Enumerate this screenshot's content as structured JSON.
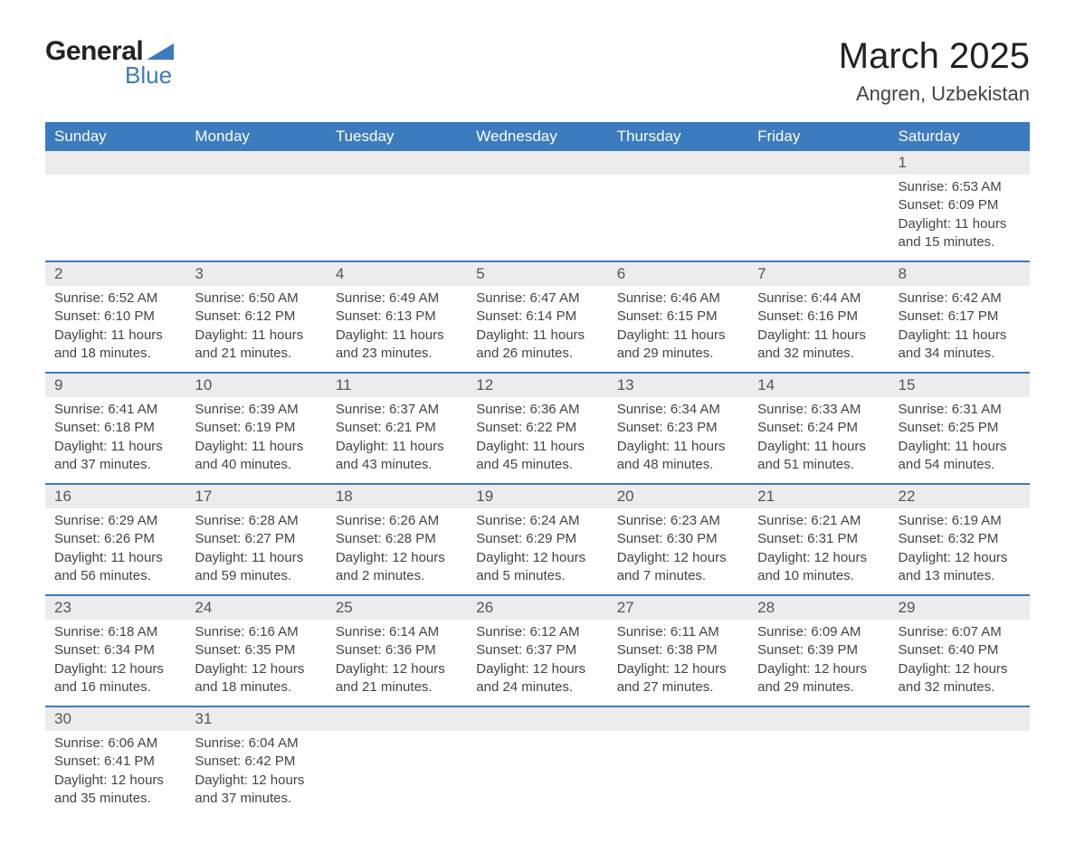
{
  "logo": {
    "general_text": "General",
    "blue_text": "Blue"
  },
  "title": "March 2025",
  "location": "Angren, Uzbekistan",
  "colors": {
    "header_bg": "#3b7bbf",
    "header_text": "#ffffff",
    "band_bg": "#ececec",
    "text": "#444444",
    "border": "#3b7bbf",
    "background": "#ffffff"
  },
  "day_names": [
    "Sunday",
    "Monday",
    "Tuesday",
    "Wednesday",
    "Thursday",
    "Friday",
    "Saturday"
  ],
  "weeks": [
    [
      null,
      null,
      null,
      null,
      null,
      null,
      {
        "day": "1",
        "sunrise": "Sunrise: 6:53 AM",
        "sunset": "Sunset: 6:09 PM",
        "daylight": "Daylight: 11 hours and 15 minutes."
      }
    ],
    [
      {
        "day": "2",
        "sunrise": "Sunrise: 6:52 AM",
        "sunset": "Sunset: 6:10 PM",
        "daylight": "Daylight: 11 hours and 18 minutes."
      },
      {
        "day": "3",
        "sunrise": "Sunrise: 6:50 AM",
        "sunset": "Sunset: 6:12 PM",
        "daylight": "Daylight: 11 hours and 21 minutes."
      },
      {
        "day": "4",
        "sunrise": "Sunrise: 6:49 AM",
        "sunset": "Sunset: 6:13 PM",
        "daylight": "Daylight: 11 hours and 23 minutes."
      },
      {
        "day": "5",
        "sunrise": "Sunrise: 6:47 AM",
        "sunset": "Sunset: 6:14 PM",
        "daylight": "Daylight: 11 hours and 26 minutes."
      },
      {
        "day": "6",
        "sunrise": "Sunrise: 6:46 AM",
        "sunset": "Sunset: 6:15 PM",
        "daylight": "Daylight: 11 hours and 29 minutes."
      },
      {
        "day": "7",
        "sunrise": "Sunrise: 6:44 AM",
        "sunset": "Sunset: 6:16 PM",
        "daylight": "Daylight: 11 hours and 32 minutes."
      },
      {
        "day": "8",
        "sunrise": "Sunrise: 6:42 AM",
        "sunset": "Sunset: 6:17 PM",
        "daylight": "Daylight: 11 hours and 34 minutes."
      }
    ],
    [
      {
        "day": "9",
        "sunrise": "Sunrise: 6:41 AM",
        "sunset": "Sunset: 6:18 PM",
        "daylight": "Daylight: 11 hours and 37 minutes."
      },
      {
        "day": "10",
        "sunrise": "Sunrise: 6:39 AM",
        "sunset": "Sunset: 6:19 PM",
        "daylight": "Daylight: 11 hours and 40 minutes."
      },
      {
        "day": "11",
        "sunrise": "Sunrise: 6:37 AM",
        "sunset": "Sunset: 6:21 PM",
        "daylight": "Daylight: 11 hours and 43 minutes."
      },
      {
        "day": "12",
        "sunrise": "Sunrise: 6:36 AM",
        "sunset": "Sunset: 6:22 PM",
        "daylight": "Daylight: 11 hours and 45 minutes."
      },
      {
        "day": "13",
        "sunrise": "Sunrise: 6:34 AM",
        "sunset": "Sunset: 6:23 PM",
        "daylight": "Daylight: 11 hours and 48 minutes."
      },
      {
        "day": "14",
        "sunrise": "Sunrise: 6:33 AM",
        "sunset": "Sunset: 6:24 PM",
        "daylight": "Daylight: 11 hours and 51 minutes."
      },
      {
        "day": "15",
        "sunrise": "Sunrise: 6:31 AM",
        "sunset": "Sunset: 6:25 PM",
        "daylight": "Daylight: 11 hours and 54 minutes."
      }
    ],
    [
      {
        "day": "16",
        "sunrise": "Sunrise: 6:29 AM",
        "sunset": "Sunset: 6:26 PM",
        "daylight": "Daylight: 11 hours and 56 minutes."
      },
      {
        "day": "17",
        "sunrise": "Sunrise: 6:28 AM",
        "sunset": "Sunset: 6:27 PM",
        "daylight": "Daylight: 11 hours and 59 minutes."
      },
      {
        "day": "18",
        "sunrise": "Sunrise: 6:26 AM",
        "sunset": "Sunset: 6:28 PM",
        "daylight": "Daylight: 12 hours and 2 minutes."
      },
      {
        "day": "19",
        "sunrise": "Sunrise: 6:24 AM",
        "sunset": "Sunset: 6:29 PM",
        "daylight": "Daylight: 12 hours and 5 minutes."
      },
      {
        "day": "20",
        "sunrise": "Sunrise: 6:23 AM",
        "sunset": "Sunset: 6:30 PM",
        "daylight": "Daylight: 12 hours and 7 minutes."
      },
      {
        "day": "21",
        "sunrise": "Sunrise: 6:21 AM",
        "sunset": "Sunset: 6:31 PM",
        "daylight": "Daylight: 12 hours and 10 minutes."
      },
      {
        "day": "22",
        "sunrise": "Sunrise: 6:19 AM",
        "sunset": "Sunset: 6:32 PM",
        "daylight": "Daylight: 12 hours and 13 minutes."
      }
    ],
    [
      {
        "day": "23",
        "sunrise": "Sunrise: 6:18 AM",
        "sunset": "Sunset: 6:34 PM",
        "daylight": "Daylight: 12 hours and 16 minutes."
      },
      {
        "day": "24",
        "sunrise": "Sunrise: 6:16 AM",
        "sunset": "Sunset: 6:35 PM",
        "daylight": "Daylight: 12 hours and 18 minutes."
      },
      {
        "day": "25",
        "sunrise": "Sunrise: 6:14 AM",
        "sunset": "Sunset: 6:36 PM",
        "daylight": "Daylight: 12 hours and 21 minutes."
      },
      {
        "day": "26",
        "sunrise": "Sunrise: 6:12 AM",
        "sunset": "Sunset: 6:37 PM",
        "daylight": "Daylight: 12 hours and 24 minutes."
      },
      {
        "day": "27",
        "sunrise": "Sunrise: 6:11 AM",
        "sunset": "Sunset: 6:38 PM",
        "daylight": "Daylight: 12 hours and 27 minutes."
      },
      {
        "day": "28",
        "sunrise": "Sunrise: 6:09 AM",
        "sunset": "Sunset: 6:39 PM",
        "daylight": "Daylight: 12 hours and 29 minutes."
      },
      {
        "day": "29",
        "sunrise": "Sunrise: 6:07 AM",
        "sunset": "Sunset: 6:40 PM",
        "daylight": "Daylight: 12 hours and 32 minutes."
      }
    ],
    [
      {
        "day": "30",
        "sunrise": "Sunrise: 6:06 AM",
        "sunset": "Sunset: 6:41 PM",
        "daylight": "Daylight: 12 hours and 35 minutes."
      },
      {
        "day": "31",
        "sunrise": "Sunrise: 6:04 AM",
        "sunset": "Sunset: 6:42 PM",
        "daylight": "Daylight: 12 hours and 37 minutes."
      },
      null,
      null,
      null,
      null,
      null
    ]
  ]
}
